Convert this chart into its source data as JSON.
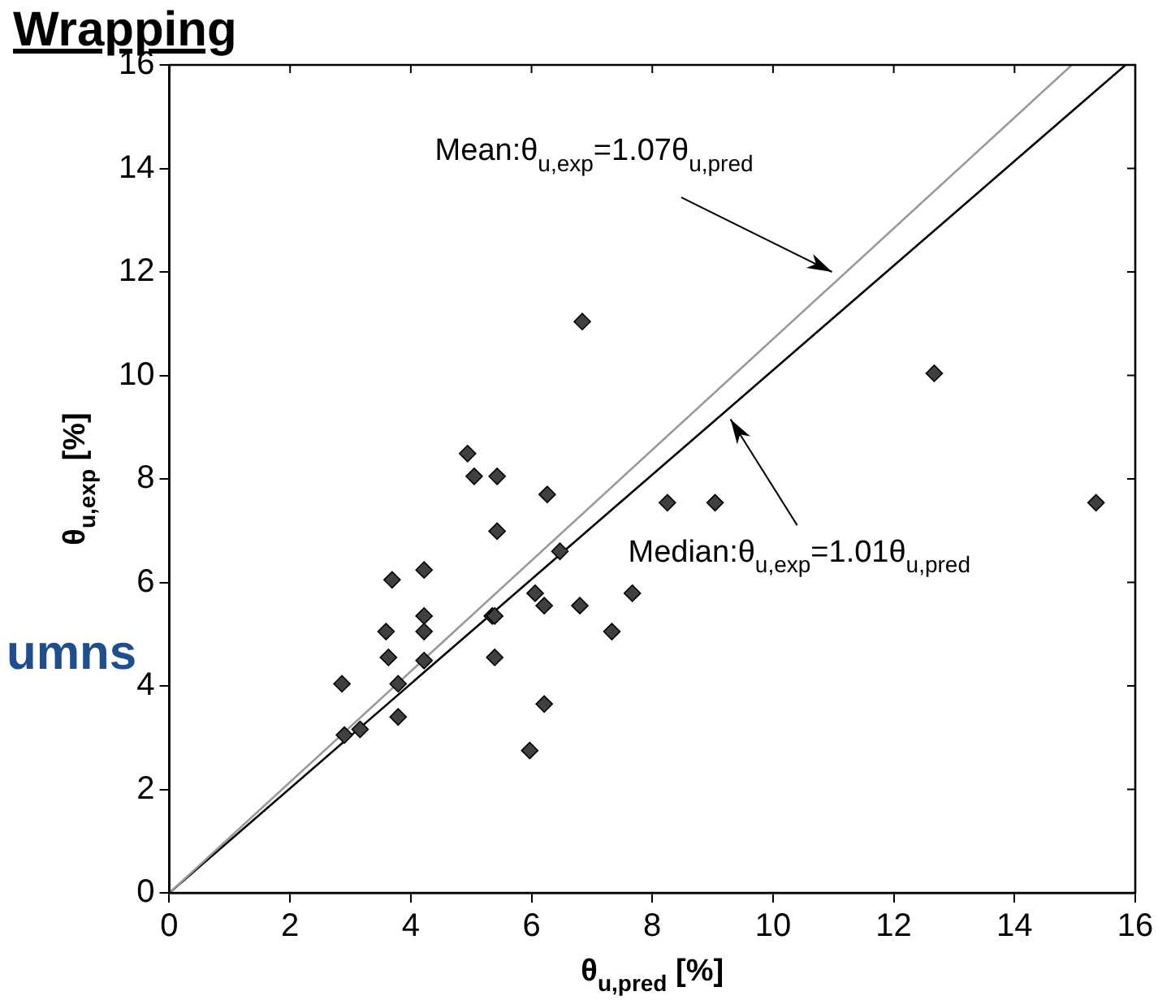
{
  "chart_data": {
    "type": "scatter",
    "xlabel": "θ$_{u,pred}$ [%]",
    "ylabel": "θ$_{u,exp}$ [%]",
    "xlim": [
      0,
      16
    ],
    "ylim": [
      0,
      16
    ],
    "xticks": [
      0,
      2,
      4,
      6,
      8,
      10,
      12,
      14,
      16
    ],
    "yticks": [
      0,
      2,
      4,
      6,
      8,
      10,
      12,
      14,
      16
    ],
    "grid": false,
    "legend": false,
    "marker": "diamond",
    "series": [
      {
        "color": "#404040",
        "x": [
          2.86,
          2.9,
          3.16,
          3.69,
          3.59,
          3.63,
          3.79,
          3.79,
          4.22,
          4.22,
          4.22,
          4.22,
          5.35,
          5.39,
          5.43,
          5.39,
          6.26,
          6.47,
          6.06,
          6.21,
          6.8,
          7.67,
          7.33,
          6.21,
          5.97,
          8.25,
          9.04,
          15.35,
          4.94,
          5.05,
          5.43,
          6.84,
          12.67
        ],
        "values": [
          4.04,
          3.05,
          3.16,
          6.05,
          5.05,
          4.55,
          4.04,
          3.4,
          6.24,
          5.35,
          5.05,
          4.49,
          5.35,
          5.35,
          6.99,
          4.55,
          7.7,
          6.6,
          5.79,
          5.55,
          5.55,
          5.79,
          5.05,
          3.65,
          2.75,
          7.54,
          7.54,
          7.54,
          8.49,
          8.05,
          8.05,
          11.04,
          10.04
        ]
      },
      {
        "type": "line",
        "color": "#999999",
        "marker": "none",
        "x": [
          0,
          14.95
        ],
        "values": [
          0,
          16
        ]
      },
      {
        "type": "line",
        "color": "#000000",
        "marker": "none",
        "x": [
          0,
          15.84
        ],
        "values": [
          0,
          16
        ]
      }
    ],
    "annotations": [
      "Mean:θ$_{u,exp}$=1.07θ$_{u,pred}$",
      "Median:θ$_{u,exp}$=1.01θ$_{u,pred}$",
      "Wrapping",
      "umns"
    ]
  }
}
